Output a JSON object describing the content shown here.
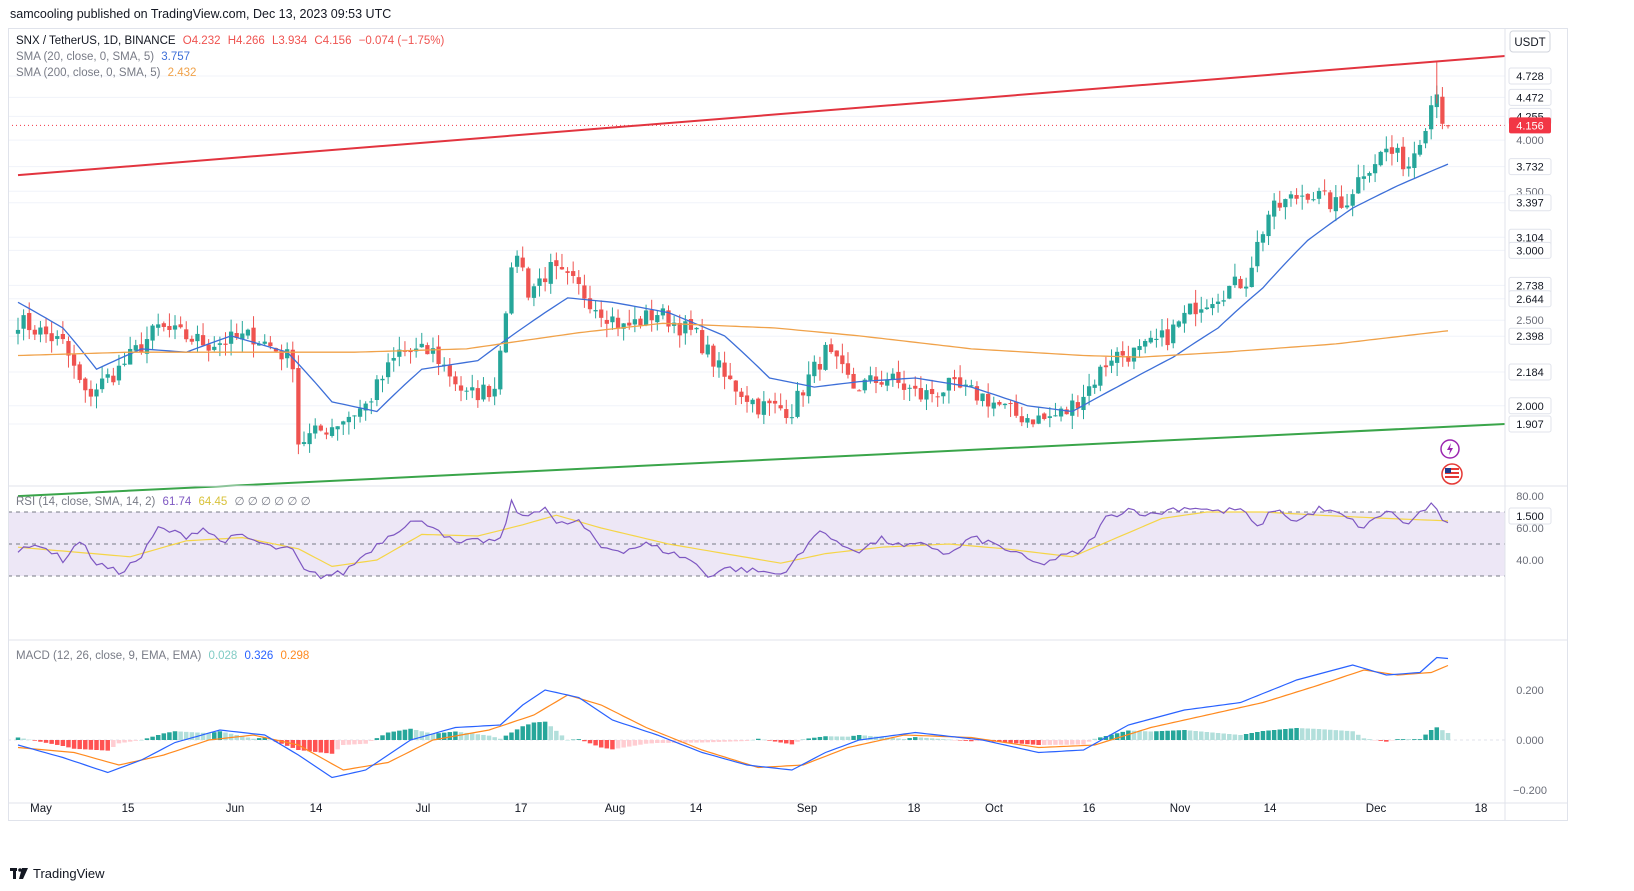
{
  "header": {
    "published": "samcooling published on TradingView.com, Dec 13, 2023 09:53 UTC"
  },
  "legend": {
    "main": {
      "prefix": "SNX / TetherUS, 1D, BINANCE",
      "o": "O4.232",
      "h": "H4.266",
      "l": "L3.934",
      "c": "C4.156",
      "chg": "−0.074 (−1.75%)"
    },
    "sma20": {
      "label": "SMA (20, close, 0, SMA, 5)",
      "value": "3.757"
    },
    "sma200": {
      "label": "SMA (200, close, 0, SMA, 5)",
      "value": "2.432"
    },
    "rsi": {
      "label": "RSI (14, close, SMA, 14, 2)",
      "value1": "61.74",
      "value2": "64.45",
      "empties": "∅ ∅ ∅ ∅ ∅ ∅"
    },
    "macd": {
      "label": "MACD (12, 26, close, 9, EMA, EMA)",
      "hist": "0.028",
      "macd": "0.326",
      "signal": "0.298"
    }
  },
  "currency": "USDT",
  "footer": {
    "logo_text": "TradingView"
  },
  "colors": {
    "up": "#26a69a",
    "down": "#ef5350",
    "sma20": "#3d6fd8",
    "sma200": "#f0a24a",
    "resistance": "#e2343f",
    "support": "#3aa54a",
    "rsi_line": "#7e57c2",
    "rsi_ma": "#f5d547",
    "rsi_band": "#ede7f6",
    "macd": "#2962ff",
    "signal": "#ff8a1f",
    "last_price_bg": "#f23645"
  },
  "chart_data": {
    "type": "candlestick",
    "symbol": "SNX / TetherUS",
    "timeframe": "1D",
    "exchange": "BINANCE",
    "price_axis_labels": [
      "4.728",
      "4.472",
      "4.255",
      "4.000",
      "3.732",
      "3.500",
      "3.397",
      "3.104",
      "3.000",
      "2.738",
      "2.644",
      "2.500",
      "2.398",
      "2.184",
      "2.000",
      "1.907",
      "1.500"
    ],
    "last_price": "4.156",
    "time_axis_labels": [
      "May",
      "15",
      "Jun",
      "14",
      "Jul",
      "17",
      "Aug",
      "14",
      "Sep",
      "18",
      "Oct",
      "16",
      "Nov",
      "14",
      "Dec",
      "18"
    ],
    "rsi_axis_labels": [
      "80.00",
      "60.00",
      "40.00"
    ],
    "rsi_levels": [
      70,
      50,
      30
    ],
    "macd_axis_labels": [
      "0.200",
      "0.000",
      "−0.200"
    ],
    "close_anchors": [
      [
        0,
        2.5
      ],
      [
        8,
        2.35
      ],
      [
        12,
        2.05
      ],
      [
        18,
        2.2
      ],
      [
        25,
        2.45
      ],
      [
        34,
        2.35
      ],
      [
        42,
        2.4
      ],
      [
        49,
        2.25
      ],
      [
        50,
        1.82
      ],
      [
        56,
        1.9
      ],
      [
        62,
        2.0
      ],
      [
        68,
        2.3
      ],
      [
        74,
        2.3
      ],
      [
        80,
        2.05
      ],
      [
        85,
        2.1
      ],
      [
        87,
        2.6
      ],
      [
        89,
        3.0
      ],
      [
        91,
        2.7
      ],
      [
        95,
        2.85
      ],
      [
        99,
        2.75
      ],
      [
        103,
        2.6
      ],
      [
        108,
        2.45
      ],
      [
        114,
        2.55
      ],
      [
        121,
        2.4
      ],
      [
        126,
        2.15
      ],
      [
        132,
        2.0
      ],
      [
        138,
        1.98
      ],
      [
        141,
        2.15
      ],
      [
        144,
        2.3
      ],
      [
        149,
        2.1
      ],
      [
        155,
        2.15
      ],
      [
        161,
        2.05
      ],
      [
        166,
        2.1
      ],
      [
        172,
        2.05
      ],
      [
        178,
        1.95
      ],
      [
        183,
        1.93
      ],
      [
        187,
        1.97
      ],
      [
        191,
        2.1
      ],
      [
        195,
        2.28
      ],
      [
        200,
        2.3
      ],
      [
        205,
        2.4
      ],
      [
        210,
        2.6
      ],
      [
        215,
        2.7
      ],
      [
        219,
        2.78
      ],
      [
        223,
        3.3
      ],
      [
        226,
        3.4
      ],
      [
        230,
        3.5
      ],
      [
        234,
        3.4
      ],
      [
        236,
        3.35
      ],
      [
        240,
        3.7
      ],
      [
        244,
        3.9
      ],
      [
        248,
        3.75
      ],
      [
        251,
        4.2
      ],
      [
        253,
        4.6
      ],
      [
        254,
        4.23
      ],
      [
        255,
        4.156
      ]
    ],
    "sma20_anchors": [
      [
        0,
        2.62
      ],
      [
        8,
        2.45
      ],
      [
        14,
        2.2
      ],
      [
        22,
        2.32
      ],
      [
        30,
        2.3
      ],
      [
        38,
        2.4
      ],
      [
        48,
        2.3
      ],
      [
        56,
        2.02
      ],
      [
        64,
        1.97
      ],
      [
        72,
        2.2
      ],
      [
        82,
        2.25
      ],
      [
        90,
        2.45
      ],
      [
        98,
        2.65
      ],
      [
        106,
        2.62
      ],
      [
        116,
        2.55
      ],
      [
        126,
        2.4
      ],
      [
        134,
        2.15
      ],
      [
        142,
        2.1
      ],
      [
        150,
        2.13
      ],
      [
        160,
        2.15
      ],
      [
        170,
        2.1
      ],
      [
        180,
        2.0
      ],
      [
        188,
        1.97
      ],
      [
        196,
        2.1
      ],
      [
        206,
        2.27
      ],
      [
        214,
        2.45
      ],
      [
        222,
        2.72
      ],
      [
        230,
        3.08
      ],
      [
        238,
        3.35
      ],
      [
        246,
        3.55
      ],
      [
        255,
        3.757
      ]
    ],
    "sma200_anchors": [
      [
        0,
        2.28
      ],
      [
        20,
        2.3
      ],
      [
        40,
        2.3
      ],
      [
        60,
        2.3
      ],
      [
        80,
        2.32
      ],
      [
        100,
        2.42
      ],
      [
        115,
        2.48
      ],
      [
        135,
        2.45
      ],
      [
        150,
        2.4
      ],
      [
        170,
        2.32
      ],
      [
        190,
        2.28
      ],
      [
        200,
        2.27
      ],
      [
        215,
        2.3
      ],
      [
        235,
        2.35
      ],
      [
        255,
        2.432
      ]
    ],
    "resistance_line": [
      [
        0,
        3.65
      ],
      [
        250,
        4.93
      ]
    ],
    "support_line": [
      [
        0,
        1.58
      ],
      [
        250,
        1.907
      ]
    ],
    "rsi_anchors": [
      [
        0,
        45
      ],
      [
        4,
        50
      ],
      [
        8,
        40
      ],
      [
        11,
        52
      ],
      [
        14,
        38
      ],
      [
        18,
        32
      ],
      [
        22,
        42
      ],
      [
        25,
        60
      ],
      [
        30,
        55
      ],
      [
        33,
        60
      ],
      [
        36,
        52
      ],
      [
        40,
        55
      ],
      [
        45,
        48
      ],
      [
        49,
        46
      ],
      [
        51,
        33
      ],
      [
        54,
        30
      ],
      [
        58,
        32
      ],
      [
        62,
        44
      ],
      [
        66,
        55
      ],
      [
        70,
        64
      ],
      [
        74,
        62
      ],
      [
        78,
        50
      ],
      [
        82,
        52
      ],
      [
        86,
        52
      ],
      [
        88,
        76
      ],
      [
        90,
        66
      ],
      [
        94,
        74
      ],
      [
        96,
        62
      ],
      [
        100,
        64
      ],
      [
        104,
        48
      ],
      [
        108,
        46
      ],
      [
        112,
        50
      ],
      [
        116,
        45
      ],
      [
        120,
        40
      ],
      [
        123,
        30
      ],
      [
        126,
        35
      ],
      [
        132,
        33
      ],
      [
        136,
        31
      ],
      [
        140,
        45
      ],
      [
        143,
        60
      ],
      [
        146,
        50
      ],
      [
        150,
        46
      ],
      [
        154,
        53
      ],
      [
        158,
        48
      ],
      [
        162,
        50
      ],
      [
        166,
        43
      ],
      [
        170,
        54
      ],
      [
        174,
        50
      ],
      [
        178,
        44
      ],
      [
        182,
        37
      ],
      [
        186,
        42
      ],
      [
        190,
        46
      ],
      [
        194,
        66
      ],
      [
        198,
        72
      ],
      [
        202,
        68
      ],
      [
        206,
        72
      ],
      [
        210,
        73
      ],
      [
        214,
        70
      ],
      [
        218,
        72
      ],
      [
        221,
        60
      ],
      [
        224,
        72
      ],
      [
        228,
        64
      ],
      [
        232,
        72
      ],
      [
        236,
        68
      ],
      [
        240,
        60
      ],
      [
        244,
        71
      ],
      [
        248,
        62
      ],
      [
        250,
        70
      ],
      [
        252,
        74
      ],
      [
        255,
        62
      ]
    ],
    "rsi_ma_anchors": [
      [
        0,
        48
      ],
      [
        10,
        45
      ],
      [
        20,
        42
      ],
      [
        30,
        52
      ],
      [
        40,
        54
      ],
      [
        50,
        47
      ],
      [
        56,
        36
      ],
      [
        64,
        40
      ],
      [
        72,
        56
      ],
      [
        82,
        55
      ],
      [
        90,
        62
      ],
      [
        96,
        68
      ],
      [
        104,
        60
      ],
      [
        116,
        50
      ],
      [
        126,
        44
      ],
      [
        136,
        38
      ],
      [
        144,
        44
      ],
      [
        154,
        48
      ],
      [
        166,
        50
      ],
      [
        176,
        47
      ],
      [
        188,
        42
      ],
      [
        196,
        54
      ],
      [
        204,
        66
      ],
      [
        212,
        70
      ],
      [
        222,
        70
      ],
      [
        232,
        68
      ],
      [
        244,
        66
      ],
      [
        255,
        64.45
      ]
    ],
    "macd_anchors": [
      [
        0,
        -0.02
      ],
      [
        8,
        -0.07
      ],
      [
        16,
        -0.13
      ],
      [
        22,
        -0.08
      ],
      [
        28,
        -0.01
      ],
      [
        36,
        0.04
      ],
      [
        44,
        0.02
      ],
      [
        50,
        -0.06
      ],
      [
        56,
        -0.15
      ],
      [
        62,
        -0.12
      ],
      [
        70,
        0.0
      ],
      [
        78,
        0.05
      ],
      [
        86,
        0.06
      ],
      [
        90,
        0.14
      ],
      [
        94,
        0.2
      ],
      [
        100,
        0.17
      ],
      [
        106,
        0.08
      ],
      [
        114,
        0.02
      ],
      [
        122,
        -0.05
      ],
      [
        130,
        -0.1
      ],
      [
        138,
        -0.12
      ],
      [
        144,
        -0.05
      ],
      [
        150,
        0.0
      ],
      [
        160,
        0.03
      ],
      [
        172,
        0.0
      ],
      [
        182,
        -0.05
      ],
      [
        190,
        -0.04
      ],
      [
        198,
        0.06
      ],
      [
        208,
        0.12
      ],
      [
        218,
        0.15
      ],
      [
        228,
        0.24
      ],
      [
        238,
        0.3
      ],
      [
        244,
        0.26
      ],
      [
        250,
        0.27
      ],
      [
        253,
        0.33
      ],
      [
        255,
        0.326
      ]
    ],
    "signal_anchors": [
      [
        0,
        -0.03
      ],
      [
        10,
        -0.05
      ],
      [
        18,
        -0.1
      ],
      [
        26,
        -0.06
      ],
      [
        34,
        0.0
      ],
      [
        42,
        0.02
      ],
      [
        50,
        -0.02
      ],
      [
        58,
        -0.12
      ],
      [
        66,
        -0.09
      ],
      [
        74,
        0.0
      ],
      [
        84,
        0.04
      ],
      [
        92,
        0.1
      ],
      [
        98,
        0.18
      ],
      [
        104,
        0.14
      ],
      [
        112,
        0.05
      ],
      [
        122,
        -0.04
      ],
      [
        132,
        -0.11
      ],
      [
        140,
        -0.1
      ],
      [
        148,
        -0.03
      ],
      [
        158,
        0.02
      ],
      [
        170,
        0.01
      ],
      [
        182,
        -0.03
      ],
      [
        192,
        -0.02
      ],
      [
        202,
        0.05
      ],
      [
        212,
        0.1
      ],
      [
        222,
        0.15
      ],
      [
        232,
        0.22
      ],
      [
        240,
        0.28
      ],
      [
        246,
        0.26
      ],
      [
        252,
        0.27
      ],
      [
        255,
        0.298
      ]
    ]
  }
}
